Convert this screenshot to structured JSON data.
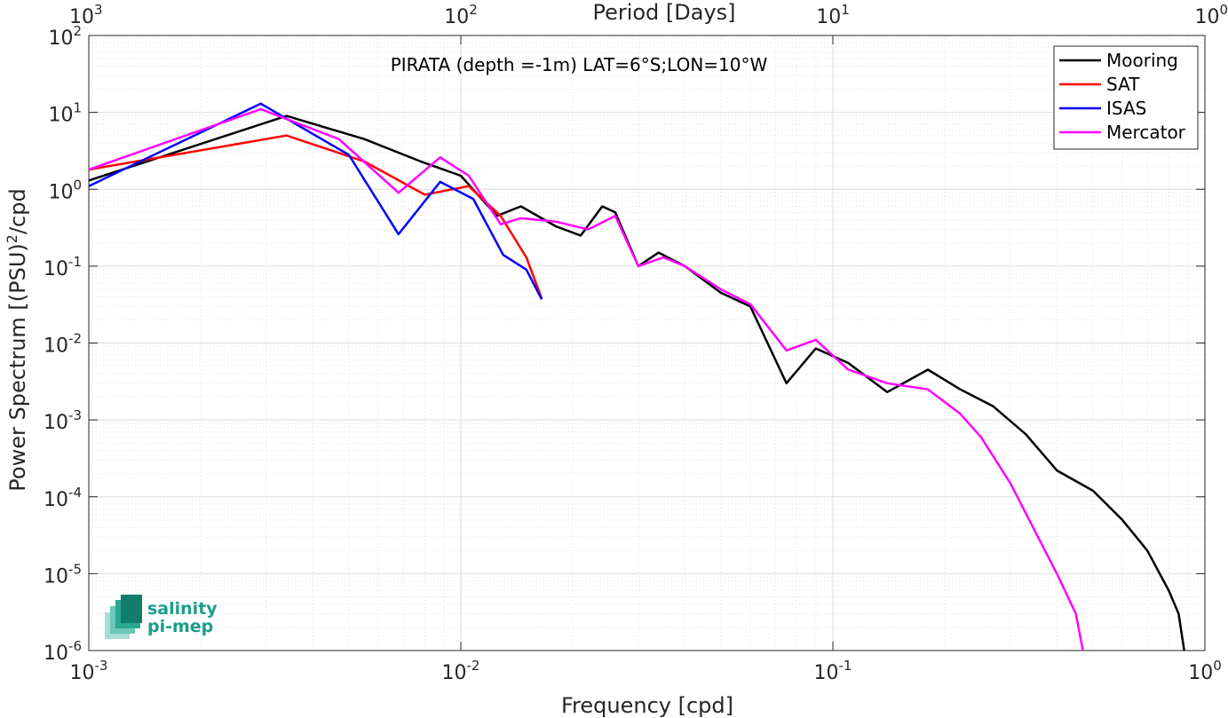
{
  "chart_data": {
    "type": "line",
    "annotation": "PIRATA (depth =-1m) LAT=6°S;LON=10°W",
    "xlabel": "Frequency [cpd]",
    "ylabel": "Power Spectrum [(PSU)",
    "ylabel_sup": "2",
    "ylabel_suffix": "/cpd",
    "top_xlabel": "Period [Days]",
    "xscale": "log",
    "yscale": "log",
    "xlim": [
      0.001,
      1
    ],
    "ylim": [
      1e-06,
      100
    ],
    "grid": true,
    "legend_position": "top-right",
    "x_ticks": [
      {
        "base": "10",
        "exp": "-3"
      },
      {
        "base": "10",
        "exp": "-2"
      },
      {
        "base": "10",
        "exp": "-1"
      },
      {
        "base": "10",
        "exp": "0"
      }
    ],
    "top_x_ticks": [
      {
        "base": "10",
        "exp": "3"
      },
      {
        "base": "10",
        "exp": "2"
      },
      {
        "base": "10",
        "exp": "1"
      },
      {
        "base": "10",
        "exp": "0"
      }
    ],
    "y_ticks": [
      {
        "base": "10",
        "exp": "-6"
      },
      {
        "base": "10",
        "exp": "-5"
      },
      {
        "base": "10",
        "exp": "-4"
      },
      {
        "base": "10",
        "exp": "-3"
      },
      {
        "base": "10",
        "exp": "-2"
      },
      {
        "base": "10",
        "exp": "-1"
      },
      {
        "base": "10",
        "exp": "0"
      },
      {
        "base": "10",
        "exp": "1"
      },
      {
        "base": "10",
        "exp": "2"
      }
    ],
    "series": [
      {
        "name": "Mooring",
        "color": "#000000",
        "x": [
          0.001,
          0.0034,
          0.0055,
          0.0078,
          0.01,
          0.0125,
          0.0145,
          0.018,
          0.021,
          0.024,
          0.026,
          0.03,
          0.034,
          0.04,
          0.05,
          0.06,
          0.075,
          0.09,
          0.11,
          0.14,
          0.18,
          0.22,
          0.27,
          0.33,
          0.4,
          0.5,
          0.6,
          0.7,
          0.8,
          0.85,
          0.88
        ],
        "y": [
          1.3,
          9.0,
          4.5,
          2.3,
          1.5,
          0.45,
          0.6,
          0.33,
          0.25,
          0.6,
          0.5,
          0.1,
          0.15,
          0.1,
          0.045,
          0.03,
          0.003,
          0.0085,
          0.0055,
          0.0023,
          0.0045,
          0.0025,
          0.0015,
          0.00065,
          0.00022,
          0.00012,
          5e-05,
          2e-05,
          6e-06,
          3e-06,
          1e-06
        ]
      },
      {
        "name": "SAT",
        "color": "#ff0000",
        "x": [
          0.001,
          0.0034,
          0.0055,
          0.008,
          0.0105,
          0.0128,
          0.015,
          0.0165
        ],
        "y": [
          1.8,
          5.0,
          2.3,
          0.85,
          1.1,
          0.45,
          0.13,
          0.038
        ]
      },
      {
        "name": "ISAS",
        "color": "#0000ff",
        "x": [
          0.001,
          0.0029,
          0.005,
          0.0068,
          0.0088,
          0.0108,
          0.013,
          0.015,
          0.0165
        ],
        "y": [
          1.1,
          13.0,
          2.8,
          0.26,
          1.25,
          0.75,
          0.14,
          0.09,
          0.037
        ]
      },
      {
        "name": "Mercator",
        "color": "#ff00ff",
        "x": [
          0.001,
          0.0029,
          0.0047,
          0.0068,
          0.0088,
          0.0105,
          0.0128,
          0.0145,
          0.018,
          0.022,
          0.026,
          0.03,
          0.035,
          0.04,
          0.05,
          0.06,
          0.075,
          0.09,
          0.11,
          0.14,
          0.18,
          0.22,
          0.25,
          0.3,
          0.35,
          0.4,
          0.45,
          0.47
        ],
        "y": [
          1.8,
          11.0,
          4.5,
          0.9,
          2.6,
          1.5,
          0.35,
          0.42,
          0.38,
          0.3,
          0.45,
          0.1,
          0.13,
          0.1,
          0.05,
          0.032,
          0.008,
          0.011,
          0.0045,
          0.003,
          0.0025,
          0.0012,
          0.0006,
          0.00015,
          3.5e-05,
          1e-05,
          3e-06,
          1e-06
        ]
      }
    ]
  },
  "logo": {
    "line1": "salinity",
    "line2": "pi-mep"
  }
}
